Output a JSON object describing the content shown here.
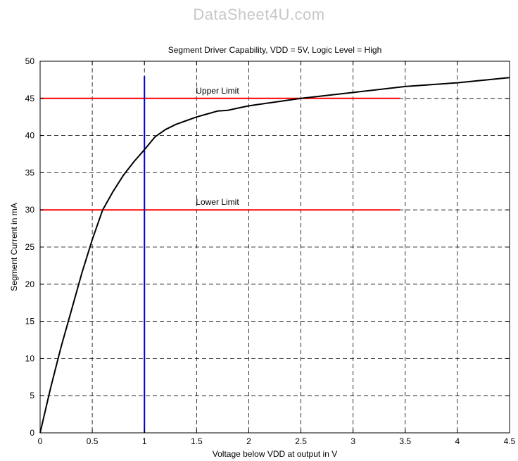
{
  "watermark": "DataSheet4U.com",
  "chart_data": {
    "type": "line",
    "title": "Segment Driver Capability, VDD = 5V, Logic Level = High",
    "xlabel": "Voltage below VDD at output in V",
    "ylabel": "Segment Current in mA",
    "xlim": [
      0,
      4.5
    ],
    "ylim": [
      0,
      50
    ],
    "xticks": [
      0,
      0.5,
      1,
      1.5,
      2,
      2.5,
      3,
      3.5,
      4,
      4.5
    ],
    "xtick_labels": [
      "0",
      "0.5",
      "1",
      "1.5",
      "2",
      "2.5",
      "3",
      "3.5",
      "4",
      "4.5"
    ],
    "yticks": [
      0,
      5,
      10,
      15,
      20,
      25,
      30,
      35,
      40,
      45,
      50
    ],
    "ytick_labels": [
      "0",
      "5",
      "10",
      "15",
      "20",
      "25",
      "30",
      "35",
      "40",
      "45",
      "50"
    ],
    "grid": true,
    "grid_style": "dashed",
    "series": [
      {
        "color": "#000000",
        "x": [
          0,
          0.1,
          0.2,
          0.3,
          0.4,
          0.5,
          0.6,
          0.7,
          0.8,
          0.9,
          1.0,
          1.1,
          1.2,
          1.3,
          1.4,
          1.5,
          1.6,
          1.7,
          1.8,
          1.9,
          2.0,
          2.2,
          2.5,
          3.0,
          3.5,
          4.0,
          4.5
        ],
        "y": [
          0,
          6,
          11.5,
          16.5,
          21.5,
          26,
          30,
          32.5,
          34.7,
          36.5,
          38.1,
          39.8,
          40.8,
          41.5,
          42.0,
          42.5,
          42.9,
          43.3,
          43.4,
          43.7,
          44.0,
          44.4,
          45.0,
          45.8,
          46.6,
          47.1,
          47.8
        ]
      }
    ],
    "reference_lines": [
      {
        "label": "Upper Limit",
        "y": 45,
        "x_range": [
          0,
          3.45
        ],
        "color": "#ff0000"
      },
      {
        "label": "Lower Limit",
        "y": 30,
        "x_range": [
          0,
          3.45
        ],
        "color": "#ff0000"
      },
      {
        "x": 1,
        "y_range": [
          0,
          48
        ],
        "color": "#0000cc"
      }
    ]
  }
}
